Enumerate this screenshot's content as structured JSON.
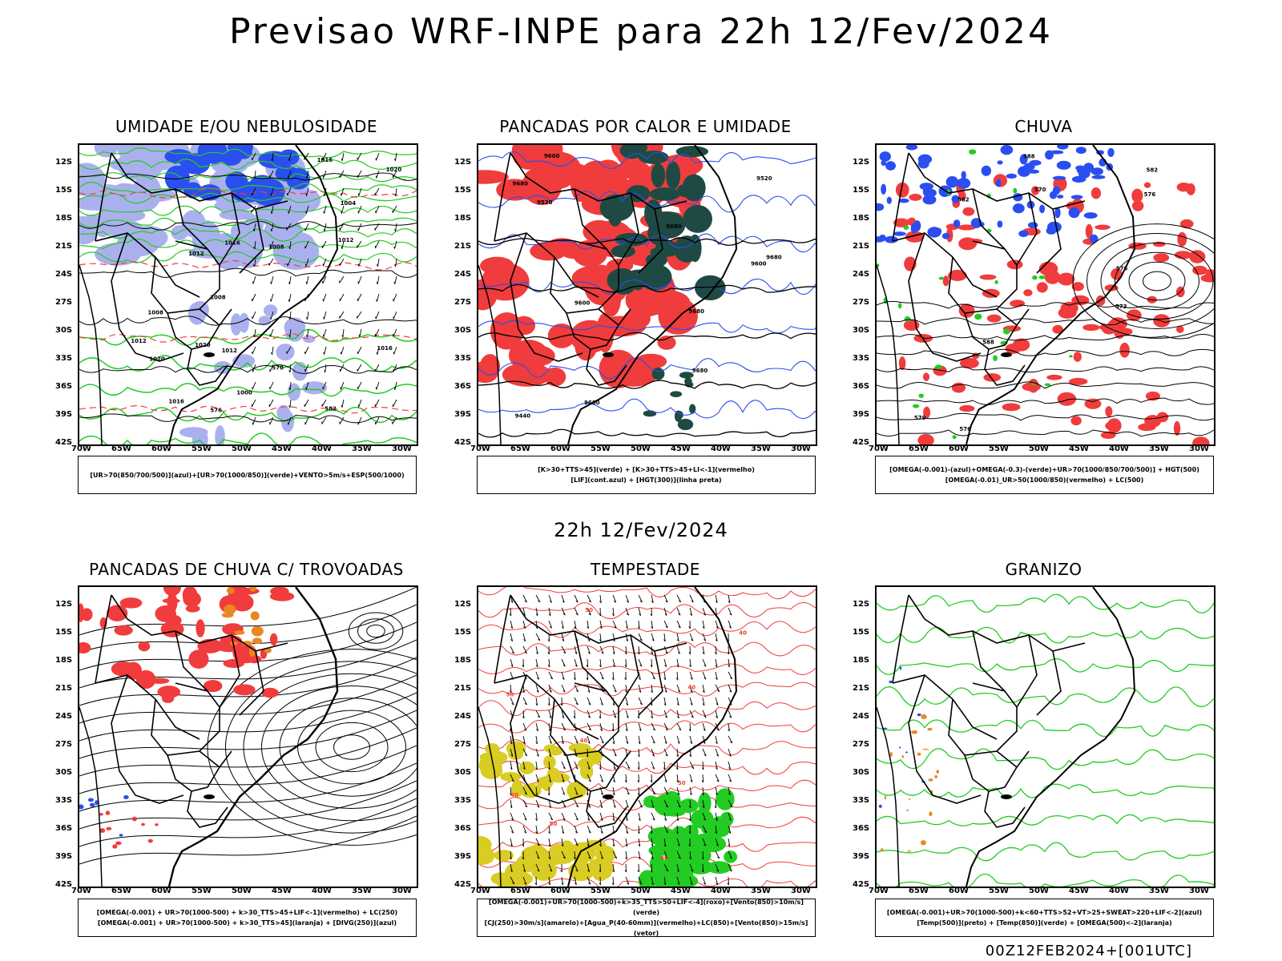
{
  "title": "Previsao WRF-INPE  para 22h 12/Fev/2024",
  "mid_title": "22h 12/Fev/2024",
  "footer": "00Z12FEB2024+[001UTC]",
  "lat_ticks": [
    "12S",
    "15S",
    "18S",
    "21S",
    "24S",
    "27S",
    "30S",
    "33S",
    "36S",
    "39S",
    "42S"
  ],
  "lon_ticks": [
    "70W",
    "65W",
    "60W",
    "55W",
    "50W",
    "45W",
    "40W",
    "35W",
    "30W"
  ],
  "colors": {
    "red": "#f03c3c",
    "green": "#22cc22",
    "blue": "#2b4ef0",
    "dark_teal": "#1f4a44",
    "lavender": "#aab0ee",
    "yellow": "#d9cc22",
    "orange": "#e88822",
    "black": "#000000"
  },
  "panels": [
    {
      "id": "umidade",
      "title": "UMIDADE E/OU NEBULOSIDADE",
      "legend": [
        "[UR>70(850/700/500)](azul)+[UR>70(1000/850)](verde)+VENTO>5m/s+ESP(500/1000)"
      ],
      "contour_labels": [
        "1016",
        "1012",
        "1020",
        "1016",
        "1008",
        "1012",
        "1016",
        "1004",
        "1020",
        "1000",
        "1012",
        "1008",
        "1016",
        "1012",
        "1008",
        "1020",
        "576",
        "582",
        "570"
      ]
    },
    {
      "id": "pancadas-calor",
      "title": "PANCADAS POR CALOR E UMIDADE",
      "legend": [
        "[K>30+TTS>45](verde) + [K>30+TTS>45+LI<-1](vermelho)",
        "[LIF](cont.azul) + [HGT(300)](linha preta)"
      ],
      "contour_labels": [
        "9680",
        "9680",
        "9680",
        "9600",
        "9680",
        "9680",
        "9680",
        "9600",
        "9600",
        "9520",
        "9440",
        "9520"
      ]
    },
    {
      "id": "chuva",
      "title": "CHUVA",
      "legend": [
        "[OMEGA(-0.001)-(azul)+OMEGA(-0.3)-(verde)+UR>70(1000/850/700/500)] + HGT(500)",
        "[OMEGA(-0.01)_UR>50(1000/850)(vermelho) + LC(500)"
      ],
      "contour_labels": [
        "582",
        "588",
        "588",
        "582",
        "576",
        "576",
        "573",
        "570",
        "576",
        "579"
      ]
    },
    {
      "id": "pancadas-trovoadas",
      "title": "PANCADAS DE CHUVA C/ TROVOADAS",
      "legend": [
        "[OMEGA(-0.001) + UR>70(1000-500) + k>30_TTS>45+LIF<-1](vermelho) + LC(250)",
        "[OMEGA(-0.001) + UR>70(1000-500) + k>30_TTS>45](laranja) + [DIVG(250)](azul)"
      ],
      "contour_labels": []
    },
    {
      "id": "tempestade",
      "title": "TEMPESTADE",
      "legend": [
        "[OMEGA(-0.001)+UR>70(1000-500)+k>35_TTS>50+LIF<-4](roxo)+[Vento(850)>10m/s](verde)",
        "[CJ(250)>30m/s](amarelo)+[Agua_P(40-60mm)](vermelho)+LC(850)+[Vento(850)>15m/s](vetor)"
      ],
      "contour_labels": [
        "50",
        "40",
        "50",
        "40",
        "40",
        "50",
        "40",
        "50",
        "40"
      ]
    },
    {
      "id": "granizo",
      "title": "GRANIZO",
      "legend": [
        "[OMEGA(-0.001)+UR>70(1000-500)+k<60+TTS>52+VT>25+SWEAT>220+LIF<-2](azul)",
        "[Temp(500)](preto) + [Temp(850)](verde) + [OMEGA(500)<-2](laranja)"
      ],
      "contour_labels": []
    }
  ]
}
